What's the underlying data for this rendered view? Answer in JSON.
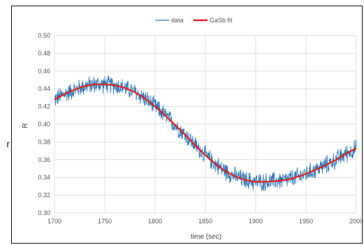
{
  "fragment": {
    "left_edge_char": "r"
  },
  "chart_data": {
    "type": "line",
    "xlabel": "time (sec)",
    "ylabel": "R",
    "xlim": [
      1700,
      2000
    ],
    "ylim": [
      0.3,
      0.5
    ],
    "xticks": [
      1700,
      1750,
      1800,
      1850,
      1900,
      1950,
      2000
    ],
    "yticks": [
      "0.30",
      "0.32",
      "0.34",
      "0.36",
      "0.38",
      "0.40",
      "0.42",
      "0.44",
      "0.46",
      "0.48",
      "0.50"
    ],
    "grid": true,
    "legend_position": "top",
    "series": [
      {
        "name": "data",
        "color": "#2e75b6",
        "style": "noisy line",
        "x": [
          1700,
          1710,
          1720,
          1730,
          1740,
          1750,
          1760,
          1770,
          1780,
          1790,
          1800,
          1810,
          1820,
          1830,
          1840,
          1850,
          1860,
          1870,
          1880,
          1890,
          1900,
          1910,
          1920,
          1930,
          1940,
          1950,
          1960,
          1970,
          1980,
          1990,
          2000
        ],
        "y": [
          0.428,
          0.434,
          0.439,
          0.443,
          0.445,
          0.445,
          0.444,
          0.441,
          0.436,
          0.429,
          0.42,
          0.41,
          0.399,
          0.388,
          0.376,
          0.365,
          0.355,
          0.347,
          0.341,
          0.337,
          0.335,
          0.335,
          0.336,
          0.337,
          0.34,
          0.344,
          0.349,
          0.354,
          0.36,
          0.367,
          0.373
        ],
        "noise_amplitude": 0.012
      },
      {
        "name": "GaSb fit",
        "color": "#e02020",
        "style": "smooth line",
        "x": [
          1700,
          1710,
          1720,
          1730,
          1740,
          1750,
          1760,
          1770,
          1780,
          1790,
          1800,
          1810,
          1820,
          1830,
          1840,
          1850,
          1860,
          1870,
          1880,
          1890,
          1900,
          1910,
          1920,
          1930,
          1940,
          1950,
          1960,
          1970,
          1980,
          1990,
          2000
        ],
        "y": [
          0.428,
          0.434,
          0.439,
          0.443,
          0.445,
          0.445,
          0.444,
          0.441,
          0.436,
          0.429,
          0.42,
          0.41,
          0.399,
          0.388,
          0.376,
          0.365,
          0.355,
          0.347,
          0.341,
          0.337,
          0.335,
          0.335,
          0.336,
          0.337,
          0.34,
          0.344,
          0.349,
          0.354,
          0.36,
          0.367,
          0.373
        ]
      }
    ]
  }
}
